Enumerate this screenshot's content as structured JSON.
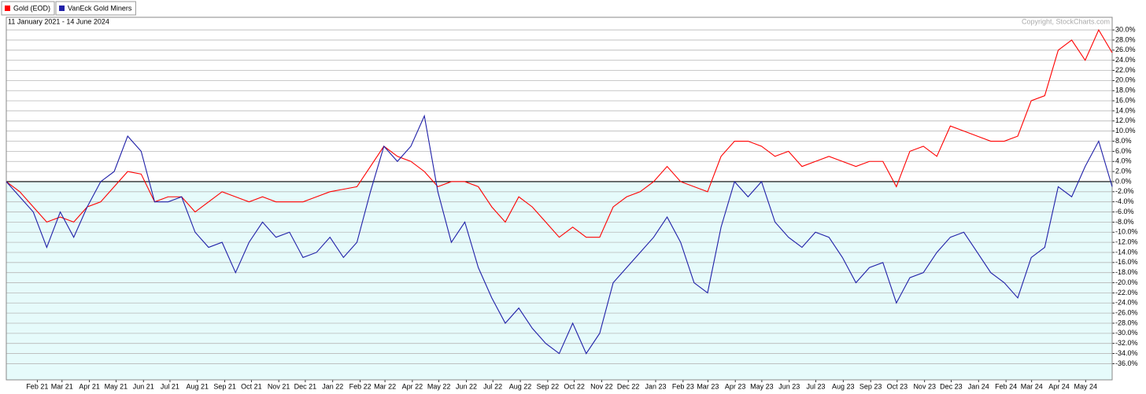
{
  "chart_data": {
    "type": "line",
    "subtitle": "11 January 2021 - 14 June 2024",
    "copyright": "Copyright, StockCharts.com",
    "xlim": [
      "2021-01-11",
      "2024-06-14"
    ],
    "xticks": [
      {
        "value": "2021-02",
        "label": "Feb 21"
      },
      {
        "value": "2021-03",
        "label": "Mar 21"
      },
      {
        "value": "2021-04",
        "label": "Apr 21"
      },
      {
        "value": "2021-05",
        "label": "May 21"
      },
      {
        "value": "2021-06",
        "label": "Jun 21"
      },
      {
        "value": "2021-07",
        "label": "Jul 21"
      },
      {
        "value": "2021-08",
        "label": "Aug 21"
      },
      {
        "value": "2021-09",
        "label": "Sep 21"
      },
      {
        "value": "2021-10",
        "label": "Oct 21"
      },
      {
        "value": "2021-11",
        "label": "Nov 21"
      },
      {
        "value": "2021-12",
        "label": "Dec 21"
      },
      {
        "value": "2022-01",
        "label": "Jan 22"
      },
      {
        "value": "2022-02",
        "label": "Feb 22"
      },
      {
        "value": "2022-03",
        "label": "Mar 22"
      },
      {
        "value": "2022-04",
        "label": "Apr 22"
      },
      {
        "value": "2022-05",
        "label": "May 22"
      },
      {
        "value": "2022-06",
        "label": "Jun 22"
      },
      {
        "value": "2022-07",
        "label": "Jul 22"
      },
      {
        "value": "2022-08",
        "label": "Aug 22"
      },
      {
        "value": "2022-09",
        "label": "Sep 22"
      },
      {
        "value": "2022-10",
        "label": "Oct 22"
      },
      {
        "value": "2022-11",
        "label": "Nov 22"
      },
      {
        "value": "2022-12",
        "label": "Dec 22"
      },
      {
        "value": "2023-01",
        "label": "Jan 23"
      },
      {
        "value": "2023-02",
        "label": "Feb 23"
      },
      {
        "value": "2023-03",
        "label": "Mar 23"
      },
      {
        "value": "2023-04",
        "label": "Apr 23"
      },
      {
        "value": "2023-05",
        "label": "May 23"
      },
      {
        "value": "2023-06",
        "label": "Jun 23"
      },
      {
        "value": "2023-07",
        "label": "Jul 23"
      },
      {
        "value": "2023-08",
        "label": "Aug 23"
      },
      {
        "value": "2023-09",
        "label": "Sep 23"
      },
      {
        "value": "2023-10",
        "label": "Oct 23"
      },
      {
        "value": "2023-11",
        "label": "Nov 23"
      },
      {
        "value": "2023-12",
        "label": "Dec 23"
      },
      {
        "value": "2024-01",
        "label": "Jan 24"
      },
      {
        "value": "2024-02",
        "label": "Feb 24"
      },
      {
        "value": "2024-03",
        "label": "Mar 24"
      },
      {
        "value": "2024-04",
        "label": "Apr 24"
      },
      {
        "value": "2024-05",
        "label": "May 24"
      }
    ],
    "ylim": [
      -39.2,
      32.5
    ],
    "yticks": [
      {
        "value": 30,
        "label": "30.0%"
      },
      {
        "value": 28,
        "label": "28.0%"
      },
      {
        "value": 26,
        "label": "26.0%"
      },
      {
        "value": 24,
        "label": "24.0%"
      },
      {
        "value": 22,
        "label": "22.0%"
      },
      {
        "value": 20,
        "label": "20.0%"
      },
      {
        "value": 18,
        "label": "18.0%"
      },
      {
        "value": 16,
        "label": "16.0%"
      },
      {
        "value": 14,
        "label": "14.0%"
      },
      {
        "value": 12,
        "label": "12.0%"
      },
      {
        "value": 10,
        "label": "10.0%"
      },
      {
        "value": 8,
        "label": "8.0%"
      },
      {
        "value": 6,
        "label": "6.0%"
      },
      {
        "value": 4,
        "label": "4.0%"
      },
      {
        "value": 2,
        "label": "2.0%"
      },
      {
        "value": 0,
        "label": "0.0%"
      },
      {
        "value": -2,
        "label": "-2.0%"
      },
      {
        "value": -4,
        "label": "-4.0%"
      },
      {
        "value": -6,
        "label": "-6.0%"
      },
      {
        "value": -8,
        "label": "-8.0%"
      },
      {
        "value": -10,
        "label": "-10.0%"
      },
      {
        "value": -12,
        "label": "-12.0%"
      },
      {
        "value": -14,
        "label": "-14.0%"
      },
      {
        "value": -16,
        "label": "-16.0%"
      },
      {
        "value": -18,
        "label": "-18.0%"
      },
      {
        "value": -20,
        "label": "-20.0%"
      },
      {
        "value": -22,
        "label": "-22.0%"
      },
      {
        "value": -24,
        "label": "-24.0%"
      },
      {
        "value": -26,
        "label": "-26.0%"
      },
      {
        "value": -28,
        "label": "-28.0%"
      },
      {
        "value": -30,
        "label": "-30.0%"
      },
      {
        "value": -32,
        "label": "-32.0%"
      },
      {
        "value": -34,
        "label": "-34.0%"
      },
      {
        "value": -36,
        "label": "-36.0%"
      }
    ],
    "grid": true,
    "negative_fill": "#e6fbfb",
    "series": [
      {
        "name": "Gold (EOD)",
        "color": "#ff0000",
        "values": [
          0,
          -2,
          -5,
          -8,
          -7,
          -8,
          -5,
          -4,
          -1,
          2,
          1.5,
          -4,
          -3,
          -3,
          -6,
          -4,
          -2,
          -3,
          -4,
          -3,
          -4,
          -4,
          -4,
          -3,
          -2,
          -1.5,
          -1,
          3,
          7,
          5,
          4,
          2,
          -1,
          0,
          0,
          -1,
          -5,
          -8,
          -3,
          -5,
          -8,
          -11,
          -9,
          -11,
          -11,
          -5,
          -3,
          -2,
          0,
          3,
          0,
          -1,
          -2,
          5,
          8,
          8,
          7,
          5,
          6,
          3,
          4,
          5,
          4,
          3,
          4,
          4,
          -1,
          6,
          7,
          5,
          11,
          10,
          9,
          8,
          8,
          9,
          16,
          17,
          26,
          28,
          24,
          30,
          25.5
        ]
      },
      {
        "name": "VanEck Gold Miners",
        "color": "#2020a8",
        "values": [
          0,
          -3,
          -6,
          -13,
          -6,
          -11,
          -5,
          0,
          2,
          9,
          6,
          -4,
          -4,
          -3,
          -10,
          -13,
          -12,
          -18,
          -12,
          -8,
          -11,
          -10,
          -15,
          -14,
          -11,
          -15,
          -12,
          -2,
          7,
          4,
          7,
          13,
          -2,
          -12,
          -8,
          -17,
          -23,
          -28,
          -25,
          -29,
          -32,
          -34,
          -28,
          -34,
          -30,
          -20,
          -17,
          -14,
          -11,
          -7,
          -12,
          -20,
          -22,
          -9,
          0,
          -3,
          0,
          -8,
          -11,
          -13,
          -10,
          -11,
          -15,
          -20,
          -17,
          -16,
          -24,
          -19,
          -18,
          -14,
          -11,
          -10,
          -14,
          -18,
          -20,
          -23,
          -15,
          -13,
          -1,
          -3,
          3,
          8,
          -1
        ]
      }
    ]
  }
}
